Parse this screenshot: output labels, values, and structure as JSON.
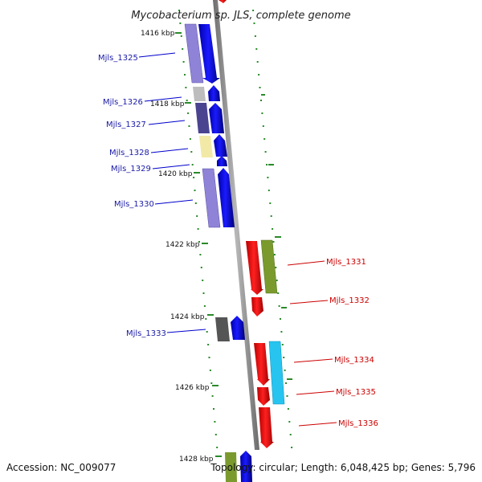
{
  "title": "Mycobacterium sp. JLS, complete genome",
  "footer": {
    "accession": "Accession: NC_009077",
    "summary": "Topology: circular; Length: 6,048,425 bp; Genes: 5,796"
  },
  "colors": {
    "forward_strand": "#0000ee",
    "reverse_strand": "#ee0000",
    "backbone": "#888888",
    "tick": "#2a8a2a",
    "forward_label": "#1a1aa8",
    "reverse_label": "#cc0000"
  },
  "kbp_ticks": [
    {
      "label": "1416 kbp"
    },
    {
      "label": "1418 kbp"
    },
    {
      "label": "1420 kbp"
    },
    {
      "label": "1422 kbp"
    },
    {
      "label": "1424 kbp"
    },
    {
      "label": "1426 kbp"
    },
    {
      "label": "1428 kbp"
    }
  ],
  "forward_genes": [
    {
      "name": "Mjls_1325",
      "cog_color": "#8e83d6"
    },
    {
      "name": "Mjls_1326",
      "cog_color": "#bdbdbd"
    },
    {
      "name": "Mjls_1327",
      "cog_color": "#4a4490"
    },
    {
      "name": "Mjls_1328",
      "cog_color": "#f2e9a6"
    },
    {
      "name": "Mjls_1329",
      "cog_color": "#ffffff"
    },
    {
      "name": "Mjls_1330",
      "cog_color": "#8e83d6"
    },
    {
      "name": "Mjls_1333",
      "cog_color": "#555555"
    }
  ],
  "reverse_genes": [
    {
      "name": "Mjls_1331",
      "cog_color": "#7a9a2e"
    },
    {
      "name": "Mjls_1332",
      "cog_color": "#ffffff"
    },
    {
      "name": "Mjls_1334",
      "cog_color": "#27c4f0"
    },
    {
      "name": "Mjls_1335",
      "cog_color": "#ffffff"
    },
    {
      "name": "Mjls_1336",
      "cog_color": "#ffffff"
    }
  ]
}
